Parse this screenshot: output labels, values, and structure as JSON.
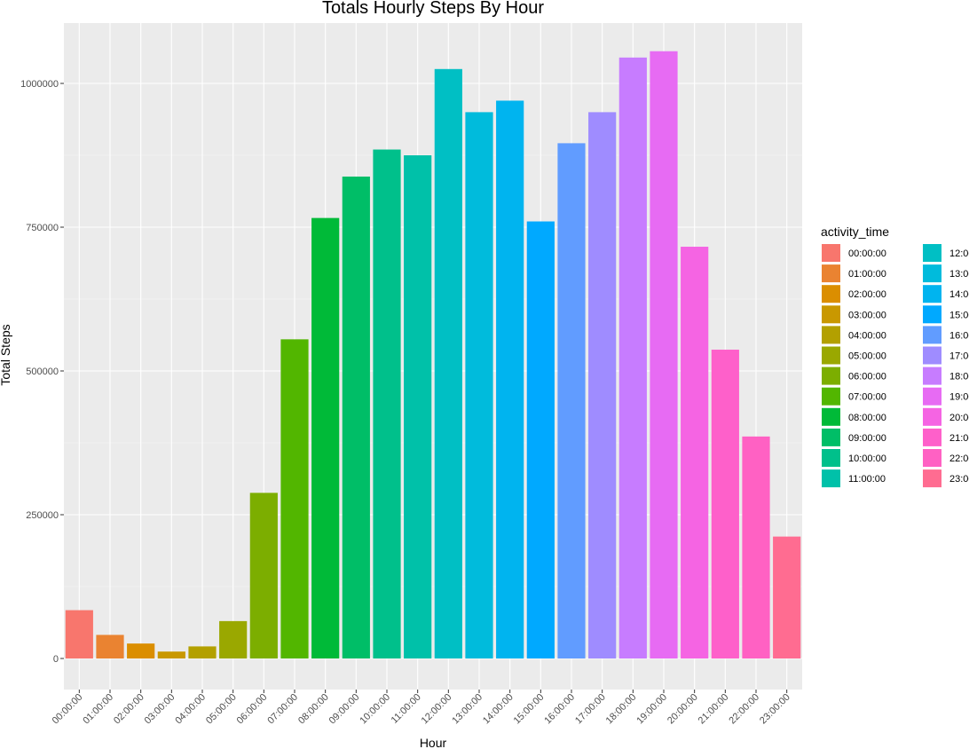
{
  "chart_data": {
    "type": "bar",
    "title": "Totals Hourly Steps By Hour",
    "xlabel": "Hour",
    "ylabel": "Total Steps",
    "categories": [
      "00:00:00",
      "01:00:00",
      "02:00:00",
      "03:00:00",
      "04:00:00",
      "05:00:00",
      "06:00:00",
      "07:00:00",
      "08:00:00",
      "09:00:00",
      "10:00:00",
      "11:00:00",
      "12:00:00",
      "13:00:00",
      "14:00:00",
      "15:00:00",
      "16:00:00",
      "17:00:00",
      "18:00:00",
      "19:00:00",
      "20:00:00",
      "21:00:00",
      "22:00:00",
      "23:00:00"
    ],
    "values": [
      84000,
      41000,
      26000,
      12000,
      21000,
      65000,
      288000,
      555000,
      766000,
      838000,
      885000,
      875000,
      1025000,
      950000,
      970000,
      760000,
      896000,
      950000,
      1045000,
      1056000,
      716000,
      537000,
      386000,
      212000
    ],
    "colors": [
      "#F8766D",
      "#EA8331",
      "#DB8E00",
      "#C99800",
      "#B3A000",
      "#9AA800",
      "#7CAE00",
      "#52B600",
      "#00BA38",
      "#00BE67",
      "#00C08B",
      "#00C1A9",
      "#00BFC4",
      "#00BBDC",
      "#00B4EF",
      "#00A9FF",
      "#619CFF",
      "#9F8CFF",
      "#C77CFF",
      "#E76BF3",
      "#F564E3",
      "#FE60CA",
      "#FF61C3",
      "#FF6C91"
    ],
    "yticks": [
      0,
      250000,
      500000,
      750000,
      1000000
    ],
    "ytick_labels": [
      "0",
      "250000",
      "500000",
      "750000",
      "1000000"
    ],
    "ylim": [
      -50000,
      1110000
    ],
    "grid": true,
    "legend": {
      "title": "activity_time",
      "placement": "right",
      "columns": 2
    }
  }
}
